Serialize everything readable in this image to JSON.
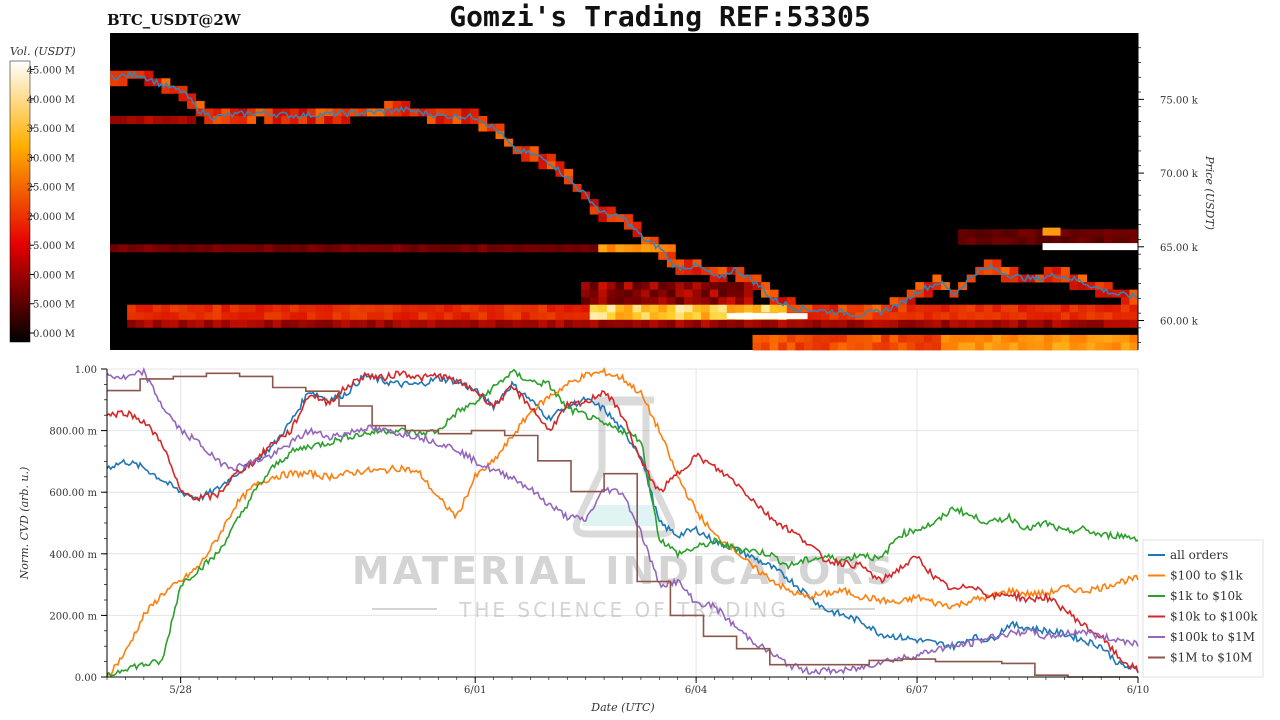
{
  "header": {
    "symbol": "BTC_USDT@2W",
    "title": "Gomzi's Trading REF:53305"
  },
  "watermark": {
    "line1": "MATERIAL INDICATORS",
    "line2": "THE SCIENCE OF TRADING"
  },
  "colors": {
    "all_orders": "#1f77b4",
    "usd_100_1k": "#ff7f0e",
    "usd_1k_10k": "#2ca02c",
    "usd_10k_100k": "#d62728",
    "usd_100k_1m": "#9467bd",
    "usd_1m_10m": "#8c564b",
    "heatmap_bg": "#000000"
  },
  "chart_data": [
    {
      "type": "heatmap",
      "colorbar": {
        "label": "Vol. (USDT)",
        "ticks": [
          "0.000 M",
          "5.000 M",
          "10.000 M",
          "15.000 M",
          "20.000 M",
          "25.000 M",
          "30.000 M",
          "35.000 M",
          "40.000 M",
          "45.000 M"
        ],
        "tick_values": [
          0,
          5,
          10,
          15,
          20,
          25,
          30,
          35,
          40,
          45
        ],
        "range": [
          0,
          48
        ]
      },
      "ylabel": "Price (USDT)",
      "ylim": [
        58000,
        79500
      ],
      "y_ticks": [
        {
          "value": 60000,
          "label": "60.00 k"
        },
        {
          "value": 65000,
          "label": "65.00 k"
        },
        {
          "value": 70000,
          "label": "70.00 k"
        },
        {
          "value": 75000,
          "label": "75.00 k"
        }
      ],
      "x_range_days": [
        0,
        14
      ],
      "price_series": {
        "name": "price",
        "x_days": [
          0.0,
          0.4,
          0.7,
          1.0,
          1.2,
          1.4,
          2.0,
          2.5,
          3.0,
          3.5,
          4.0,
          4.5,
          5.0,
          5.3,
          5.5,
          5.8,
          6.0,
          6.2,
          6.5,
          6.7,
          7.0,
          7.3,
          7.5,
          7.7,
          8.0,
          8.3,
          8.5,
          8.7,
          8.9,
          9.0,
          9.3,
          9.6,
          9.9,
          10.2,
          10.5,
          10.8,
          11.0,
          11.3,
          11.5,
          11.8,
          12.0,
          12.3,
          12.6,
          12.9,
          13.2,
          13.5,
          13.7,
          14.0
        ],
        "price": [
          76500,
          76700,
          76000,
          75500,
          74300,
          73800,
          74100,
          73900,
          74000,
          74100,
          74300,
          73900,
          73800,
          72800,
          71600,
          71200,
          70700,
          69800,
          68400,
          67300,
          66900,
          65400,
          64900,
          63600,
          63700,
          62800,
          63500,
          62900,
          62100,
          61500,
          60900,
          60700,
          60600,
          60400,
          60600,
          61200,
          62000,
          62600,
          61800,
          63300,
          63600,
          63000,
          62800,
          63100,
          62700,
          62100,
          61800,
          61600
        ]
      }
    },
    {
      "type": "line",
      "xlabel": "Date (UTC)",
      "ylabel": "Norm. CVD (arb. u.)",
      "ylim": [
        0,
        1
      ],
      "y_ticks": [
        {
          "value": 0.0,
          "label": "0.00"
        },
        {
          "value": 0.2,
          "label": "200.00 m"
        },
        {
          "value": 0.4,
          "label": "400.00 m"
        },
        {
          "value": 0.6,
          "label": "600.00 m"
        },
        {
          "value": 0.8,
          "label": "800.00 m"
        },
        {
          "value": 1.0,
          "label": "1.00"
        }
      ],
      "x_ticks": [
        {
          "value": 1.0,
          "label": "5/28"
        },
        {
          "value": 5.0,
          "label": "6/01"
        },
        {
          "value": 8.0,
          "label": "6/04"
        },
        {
          "value": 11.0,
          "label": "6/07"
        },
        {
          "value": 14.0,
          "label": "6/10"
        }
      ],
      "x_range_days": [
        0,
        14
      ],
      "x_days": [
        0.0,
        0.25,
        0.5,
        0.75,
        1.0,
        1.25,
        1.5,
        1.75,
        2.0,
        2.25,
        2.5,
        2.75,
        3.0,
        3.25,
        3.5,
        3.75,
        4.0,
        4.25,
        4.5,
        4.75,
        5.0,
        5.25,
        5.5,
        5.75,
        6.0,
        6.25,
        6.5,
        6.75,
        7.0,
        7.25,
        7.5,
        7.75,
        8.0,
        8.25,
        8.5,
        8.75,
        9.0,
        9.25,
        9.5,
        9.75,
        10.0,
        10.25,
        10.5,
        10.75,
        11.0,
        11.25,
        11.5,
        11.75,
        12.0,
        12.25,
        12.5,
        12.75,
        13.0,
        13.25,
        13.5,
        13.75,
        14.0
      ],
      "series": [
        {
          "name": "all orders",
          "color": "#1f77b4",
          "values": [
            0.68,
            0.7,
            0.68,
            0.64,
            0.6,
            0.58,
            0.61,
            0.66,
            0.7,
            0.75,
            0.83,
            0.93,
            0.9,
            0.92,
            0.98,
            0.96,
            0.95,
            0.95,
            0.97,
            0.96,
            0.93,
            0.88,
            0.95,
            0.9,
            0.84,
            0.88,
            0.9,
            0.87,
            0.8,
            0.72,
            0.5,
            0.46,
            0.48,
            0.44,
            0.42,
            0.39,
            0.36,
            0.32,
            0.27,
            0.22,
            0.2,
            0.18,
            0.14,
            0.13,
            0.12,
            0.11,
            0.1,
            0.13,
            0.12,
            0.17,
            0.16,
            0.15,
            0.14,
            0.12,
            0.1,
            0.04,
            0.02
          ]
        },
        {
          "name": "$100 to $1k",
          "color": "#ff7f0e",
          "values": [
            0.0,
            0.08,
            0.2,
            0.27,
            0.31,
            0.36,
            0.45,
            0.56,
            0.62,
            0.65,
            0.66,
            0.66,
            0.65,
            0.66,
            0.67,
            0.67,
            0.68,
            0.66,
            0.58,
            0.52,
            0.65,
            0.7,
            0.78,
            0.86,
            0.91,
            0.95,
            0.98,
            0.99,
            0.97,
            0.92,
            0.8,
            0.65,
            0.54,
            0.46,
            0.42,
            0.36,
            0.32,
            0.28,
            0.26,
            0.27,
            0.28,
            0.26,
            0.25,
            0.24,
            0.26,
            0.24,
            0.23,
            0.25,
            0.26,
            0.28,
            0.27,
            0.27,
            0.29,
            0.28,
            0.29,
            0.31,
            0.32
          ]
        },
        {
          "name": "$1k to $10k",
          "color": "#2ca02c",
          "values": [
            0.0,
            0.03,
            0.04,
            0.05,
            0.3,
            0.35,
            0.4,
            0.5,
            0.6,
            0.68,
            0.73,
            0.75,
            0.76,
            0.78,
            0.79,
            0.8,
            0.8,
            0.79,
            0.8,
            0.86,
            0.89,
            0.94,
            0.99,
            0.96,
            0.95,
            0.87,
            0.85,
            0.82,
            0.8,
            0.77,
            0.45,
            0.4,
            0.42,
            0.44,
            0.42,
            0.41,
            0.4,
            0.36,
            0.38,
            0.39,
            0.38,
            0.4,
            0.38,
            0.46,
            0.48,
            0.5,
            0.55,
            0.52,
            0.5,
            0.52,
            0.48,
            0.5,
            0.47,
            0.48,
            0.46,
            0.46,
            0.45
          ]
        },
        {
          "name": "$10k to $100k",
          "color": "#d62728",
          "values": [
            0.85,
            0.86,
            0.83,
            0.76,
            0.6,
            0.58,
            0.59,
            0.66,
            0.7,
            0.76,
            0.8,
            0.92,
            0.89,
            0.94,
            0.98,
            0.97,
            0.99,
            0.97,
            0.98,
            0.96,
            0.93,
            0.88,
            0.94,
            0.88,
            0.8,
            0.88,
            0.89,
            0.93,
            0.85,
            0.7,
            0.6,
            0.66,
            0.72,
            0.68,
            0.64,
            0.58,
            0.52,
            0.48,
            0.44,
            0.38,
            0.37,
            0.36,
            0.31,
            0.35,
            0.39,
            0.32,
            0.28,
            0.3,
            0.26,
            0.27,
            0.25,
            0.26,
            0.22,
            0.17,
            0.13,
            0.06,
            0.02
          ]
        },
        {
          "name": "$100k to $1M",
          "color": "#9467bd",
          "values": [
            0.98,
            0.97,
            0.99,
            0.88,
            0.8,
            0.76,
            0.7,
            0.68,
            0.7,
            0.72,
            0.76,
            0.8,
            0.78,
            0.79,
            0.81,
            0.8,
            0.79,
            0.78,
            0.76,
            0.74,
            0.7,
            0.67,
            0.65,
            0.61,
            0.56,
            0.52,
            0.51,
            0.61,
            0.6,
            0.47,
            0.3,
            0.31,
            0.24,
            0.23,
            0.17,
            0.12,
            0.08,
            0.04,
            0.02,
            0.02,
            0.02,
            0.03,
            0.05,
            0.06,
            0.07,
            0.09,
            0.1,
            0.11,
            0.13,
            0.14,
            0.15,
            0.13,
            0.14,
            0.15,
            0.13,
            0.12,
            0.11
          ]
        },
        {
          "name": "$1M to $10M",
          "color": "#8c564b",
          "values": [
            0.93,
            0.96,
            0.97,
            0.97,
            0.98,
            0.99,
            0.98,
            0.98,
            0.96,
            0.94,
            0.92,
            0.93,
            0.91,
            0.86,
            0.82,
            0.81,
            0.8,
            0.8,
            0.79,
            0.8,
            0.8,
            0.79,
            0.78,
            0.77,
            0.6,
            0.6,
            0.61,
            0.66,
            0.43,
            0.28,
            0.2,
            0.2,
            0.14,
            0.12,
            0.1,
            0.06,
            0.04,
            0.04,
            0.04,
            0.04,
            0.04,
            0.05,
            0.06,
            0.06,
            0.05,
            0.05,
            0.05,
            0.05,
            0.05,
            0.04,
            0.01,
            0.0,
            0.0,
            0.0,
            0.0,
            0.0,
            0.0
          ]
        }
      ],
      "legend_position": "right"
    }
  ]
}
